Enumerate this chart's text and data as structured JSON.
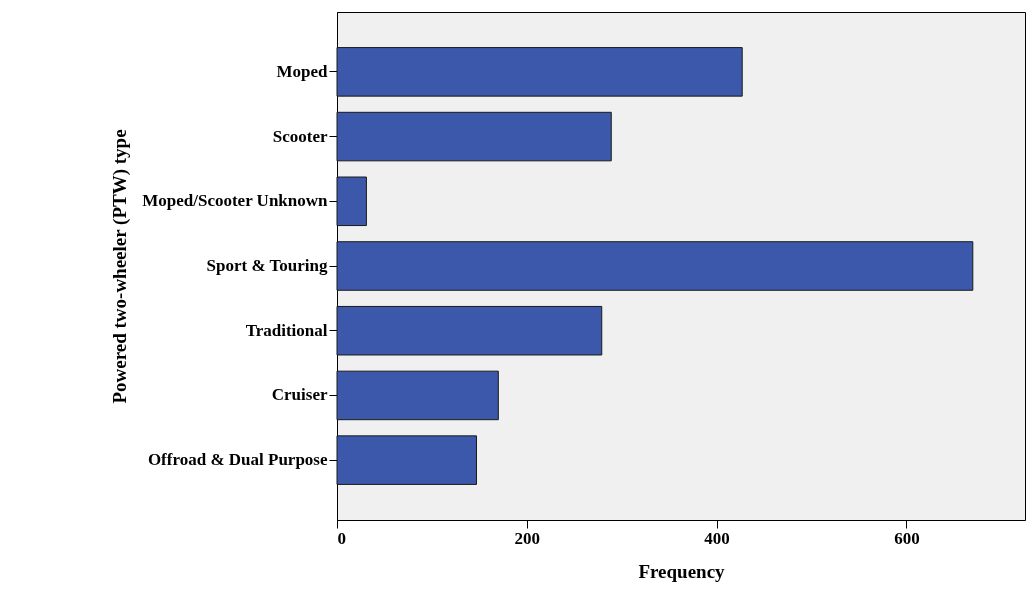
{
  "chart_data": {
    "type": "bar",
    "orientation": "horizontal",
    "categories": [
      "Moped",
      "Scooter",
      "Moped/Scooter Unknown",
      "Sport & Touring",
      "Traditional",
      "Cruiser",
      "Offroad & Dual Purpose"
    ],
    "values": [
      427,
      289,
      31,
      670,
      279,
      170,
      147
    ],
    "color": "#3c58aa",
    "xlabel": "Frequency",
    "ylabel": "Powered two-wheeler (PTW) type",
    "xlim": [
      0,
      725
    ],
    "xticks": [
      0,
      200,
      400,
      600
    ],
    "grid": false
  }
}
